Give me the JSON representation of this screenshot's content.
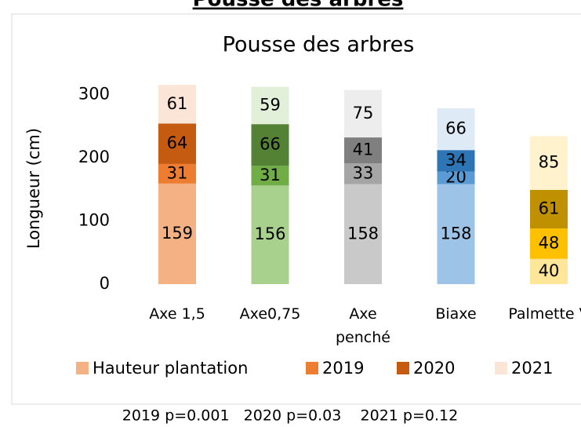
{
  "top_title": "Pousse des arbres",
  "footer": "2019 p=0.001   2020 p=0.03    2021 p=0.12",
  "chart_data": {
    "type": "stacked_bar",
    "title": "Pousse des arbres",
    "y_label": "Longueur (cm)",
    "categories": [
      "Axe 1,5",
      "Axe0,75",
      "Axe penché",
      "Biaxe",
      "Palmette V"
    ],
    "series": [
      {
        "name": "Hauteur plantation",
        "color": "#f4b183",
        "colors": [
          "#f4b183",
          "#a9d18e",
          "#c9c9c9",
          "#9dc3e6",
          "#ffe699"
        ],
        "values": [
          159,
          156,
          158,
          158,
          40
        ]
      },
      {
        "name": "2019",
        "color": "#ed7d31",
        "colors": [
          "#ed7d31",
          "#70ad47",
          "#a5a5a5",
          "#5b9bd5",
          "#ffc000"
        ],
        "values": [
          31,
          31,
          33,
          20,
          48
        ]
      },
      {
        "name": "2020",
        "color": "#c55a11",
        "colors": [
          "#c55a11",
          "#548235",
          "#7f7f7f",
          "#2e75b6",
          "#bf9000"
        ],
        "values": [
          64,
          66,
          41,
          34,
          61
        ]
      },
      {
        "name": "2021",
        "color": "#fbe5d6",
        "colors": [
          "#fbe5d6",
          "#e2f0d9",
          "#ededed",
          "#deebf7",
          "#fff2cc"
        ],
        "values": [
          61,
          59,
          75,
          66,
          85
        ]
      }
    ],
    "ylim": [
      0,
      350
    ],
    "yticks": [
      0,
      100,
      200,
      300
    ],
    "grid": false,
    "legend": "bottom"
  }
}
